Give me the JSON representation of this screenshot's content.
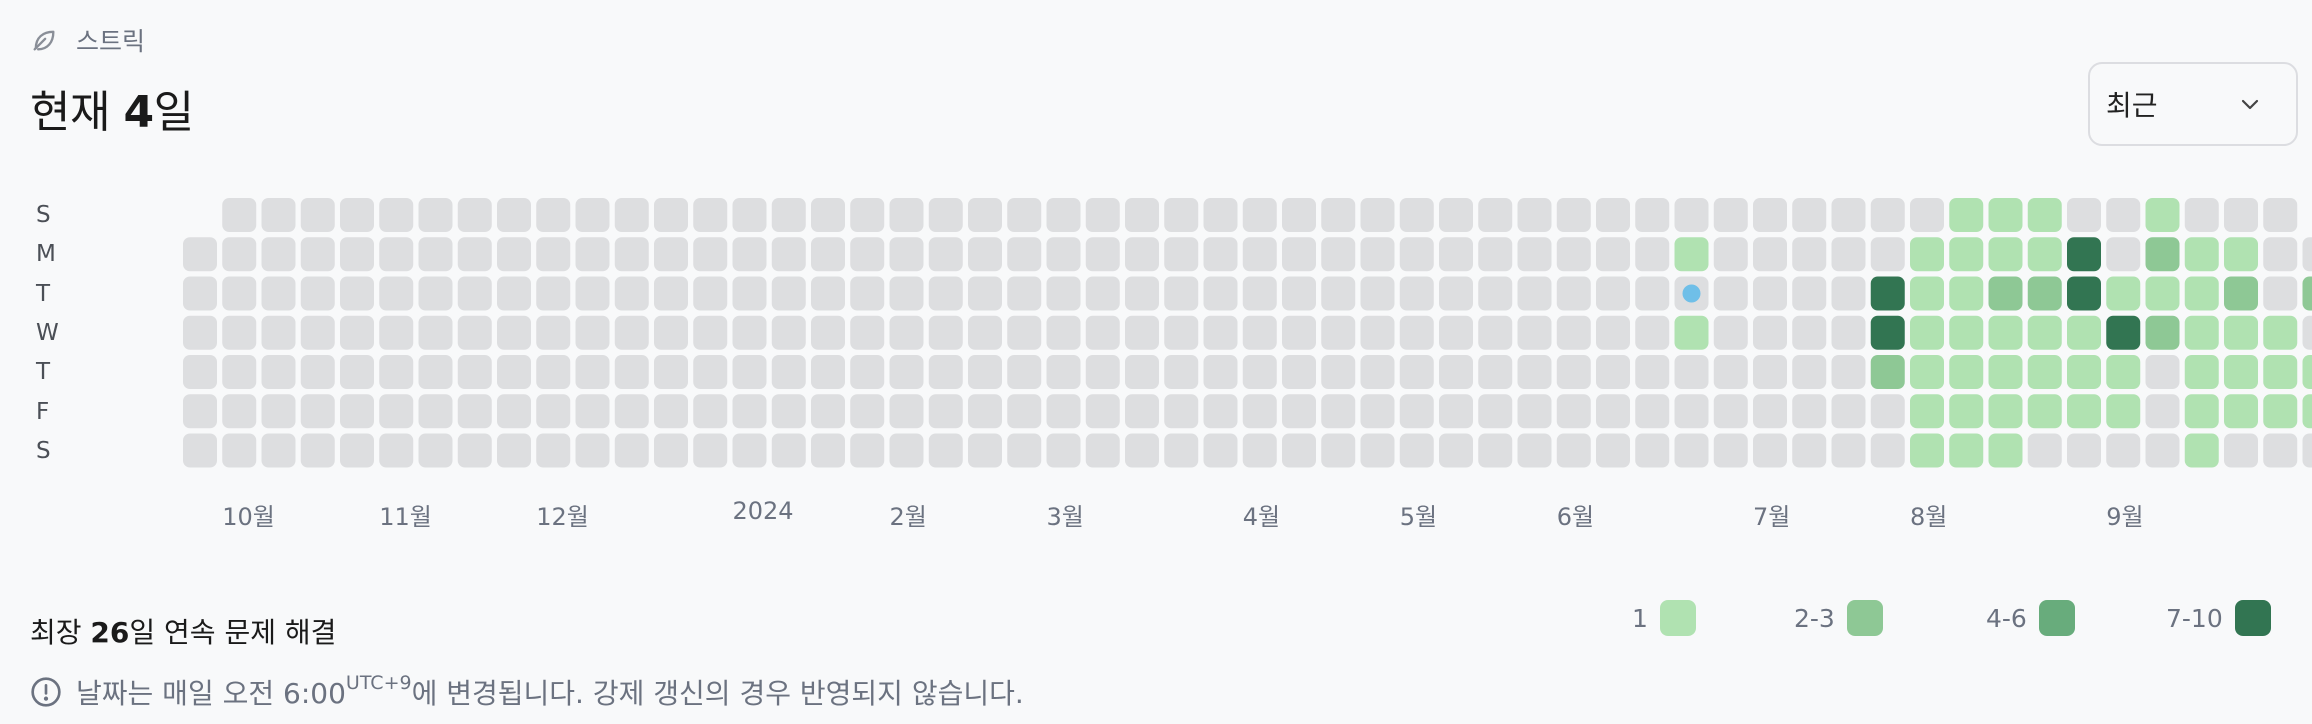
{
  "header": {
    "label": "스트릭",
    "icon": "leaf-icon"
  },
  "title": {
    "prefix": "현재 ",
    "value": "4",
    "suffix": "일"
  },
  "dropdown": {
    "selected": "최근",
    "icon": "chevron-down-icon"
  },
  "days": [
    "S",
    "M",
    "T",
    "W",
    "T",
    "F",
    "S"
  ],
  "months": [
    {
      "label": "10월",
      "col": 1
    },
    {
      "label": "11월",
      "col": 5
    },
    {
      "label": "12월",
      "col": 9
    },
    {
      "label": "2024",
      "col": 14
    },
    {
      "label": "2월",
      "col": 18
    },
    {
      "label": "3월",
      "col": 22
    },
    {
      "label": "4월",
      "col": 27
    },
    {
      "label": "5월",
      "col": 31
    },
    {
      "label": "6월",
      "col": 35
    },
    {
      "label": "7월",
      "col": 40
    },
    {
      "label": "8월",
      "col": 44
    },
    {
      "label": "9월",
      "col": 49
    }
  ],
  "grid": {
    "cols": 53,
    "levels": [
      "xeeeeeeeeeeeeeeeeeeeeeeeeeeeeeeeeeeeeeeeeeeee111ee1eee",
      "eeeeeeeeeeeeeeeeeeeeeeeeeeeeeeeeeeeeee1eeeee11114e211ee",
      "eeeeeeeeeeeeeeeeeeeeeeeeeeeeeeeeeeeeeeeeeee4112241112e2",
      "eeeeeeeeeeeeeeeeeeeeeeeeeeeeeeeeeeeeee1eeee41111142111e1",
      "eeeeeeeeeeeeeeeeeeeeeeeeeeeeeeeeeeeeeeeeeee2111111e1111e1",
      "eeeeeeeeeeeeeeeeeeeeeeeeeeeeeeeeeeeeeeeeeeee111111e1111e2",
      "eeeeeeeeeeeeeeeeeeeeeeeeeeeeeeeeeeeeeeeeeeee111eeee1eeex"
    ],
    "today": {
      "col": 38,
      "row": 2
    }
  },
  "colors": {
    "empty": "#dddee0",
    "today_dot": "#6fbfe8",
    "l1": "#b0e2b1",
    "l2": "#8ec895",
    "l3": "#68ac7c",
    "l4": "#327552"
  },
  "footer": {
    "prefix": "최장 ",
    "value": "26",
    "suffix": "일 연속 문제 해결"
  },
  "legend": [
    {
      "label": "1",
      "color": "#b0e2b1"
    },
    {
      "label": "2-3",
      "color": "#8ec895"
    },
    {
      "label": "4-6",
      "color": "#68ac7c"
    },
    {
      "label": "7-10",
      "color": "#327552"
    }
  ],
  "note": {
    "prefix": "날짜는 매일 오전 6:00",
    "sup": "UTC+9",
    "suffix": "에 변경됩니다. 강제 갱신의 경우 반영되지 않습니다.",
    "icon": "info-icon"
  }
}
